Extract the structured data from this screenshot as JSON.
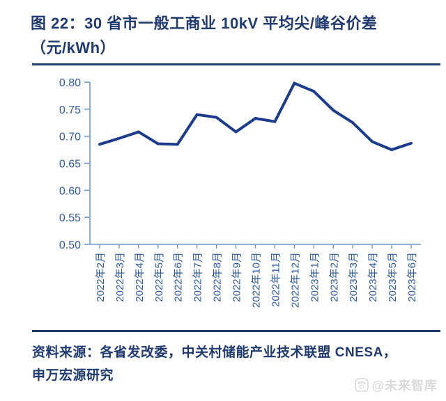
{
  "header": {
    "figure_title_line1": "图 22：30 省市一般工商业 10kV 平均尖/峰谷价差",
    "figure_title_line2": "（元/kWh）"
  },
  "chart_data": {
    "type": "line",
    "title": "30 省市一般工商业 10kV 平均尖/峰谷价差（元/kWh）",
    "categories": [
      "2022年2月",
      "2022年3月",
      "2022年4月",
      "2022年5月",
      "2022年6月",
      "2022年7月",
      "2022年8月",
      "2022年9月",
      "2022年10月",
      "2022年11月",
      "2022年12月",
      "2023年1月",
      "2023年2月",
      "2023年3月",
      "2023年4月",
      "2023年5月",
      "2023年6月"
    ],
    "values": [
      0.685,
      0.696,
      0.708,
      0.686,
      0.685,
      0.74,
      0.735,
      0.708,
      0.733,
      0.727,
      0.798,
      0.783,
      0.748,
      0.725,
      0.69,
      0.675,
      0.687
    ],
    "xlabel": "",
    "ylabel": "",
    "ylim": [
      0.5,
      0.8
    ],
    "y_tick_labels": [
      "0.80",
      "0.75",
      "0.70",
      "0.65",
      "0.60",
      "0.55",
      "0.50"
    ],
    "grid": false,
    "legend": "none",
    "line_color": "#1b3b8c",
    "axis_color": "#6f97c9",
    "tick_label_color": "#2d5aa4"
  },
  "footer": {
    "source_line1": "资料来源：各省发改委，中关村储能产业技术联盟 CNESA，",
    "source_line2": "申万宏源研究",
    "watermark_text": "@未来智库"
  },
  "colors": {
    "navy": "#1f3a70",
    "watermark_gray": "#d9d9d9"
  }
}
